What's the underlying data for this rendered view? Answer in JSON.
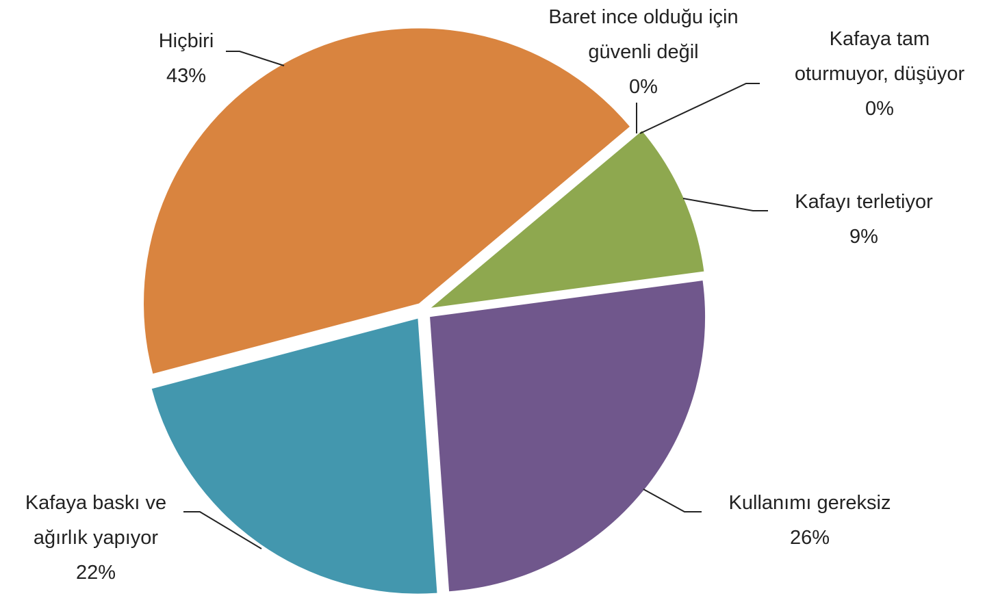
{
  "chart_data": {
    "type": "pie",
    "categories": [
      "Baret ince olduğu için güvenli değil",
      "Kafaya tam oturmuyor, düşüyor",
      "Kafayı terletiyor",
      "Kullanımı gereksiz",
      "Kafaya baskı ve ağırlık yapıyor",
      "Hiçbiri"
    ],
    "values": [
      0,
      0,
      9,
      26,
      22,
      43
    ],
    "value_labels": [
      "0%",
      "0%",
      "9%",
      "26%",
      "22%",
      "43%"
    ],
    "colors": [
      "#4f81bd",
      "#c0504d",
      "#8ea84f",
      "#70578c",
      "#4397ae",
      "#d9843f"
    ]
  }
}
